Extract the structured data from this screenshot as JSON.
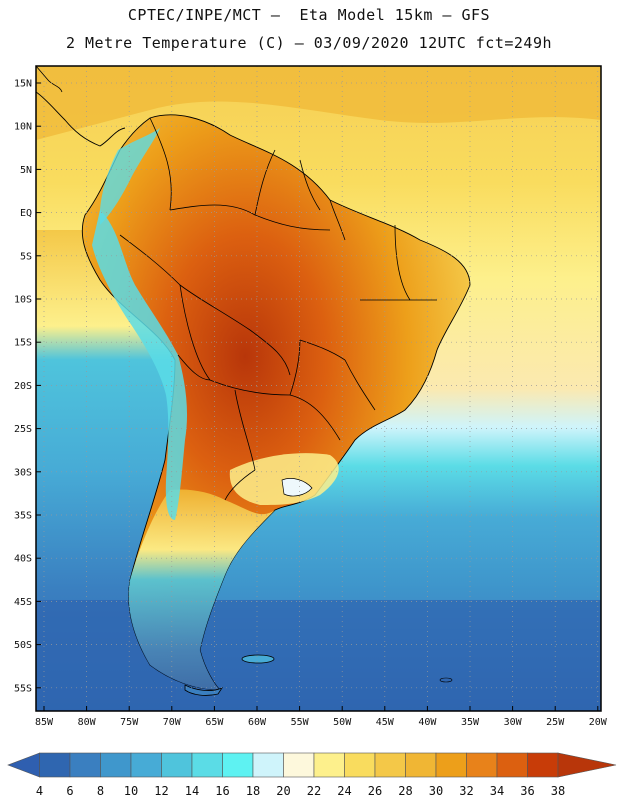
{
  "header": {
    "line1": "CPTEC/INPE/MCT –  Eta Model 15km – GFS",
    "line2": "2 Metre Temperature (C) – 03/09/2020 12UTC fct=249h"
  },
  "map": {
    "lat_labels": [
      "15N",
      "10N",
      "5N",
      "EQ",
      "5S",
      "10S",
      "15S",
      "20S",
      "25S",
      "30S",
      "35S",
      "40S",
      "45S",
      "50S",
      "55S"
    ],
    "lon_labels": [
      "85W",
      "80W",
      "75W",
      "70W",
      "65W",
      "60W",
      "55W",
      "50W",
      "45W",
      "40W",
      "35W",
      "30W",
      "25W",
      "20W"
    ]
  },
  "colorbar": {
    "labels": [
      "4",
      "6",
      "8",
      "10",
      "12",
      "14",
      "16",
      "18",
      "20",
      "22",
      "24",
      "26",
      "28",
      "30",
      "32",
      "34",
      "36",
      "38"
    ],
    "colors": [
      "#2f66b0",
      "#3a7fc0",
      "#3f97cc",
      "#47abd6",
      "#4fc4dc",
      "#5bdce6",
      "#5ef2f2",
      "#cff4fb",
      "#fdf8dc",
      "#fdf08c",
      "#f9dc5e",
      "#f4c848",
      "#f0b634",
      "#ed9f1a",
      "#e8821a",
      "#dc6010",
      "#c83c08"
    ],
    "left_arrow_color": "#2f5fb0",
    "right_arrow_color": "#b8360a"
  },
  "colors": {
    "ocean_cold": "#2f66b0",
    "ocean_mid": "#47abd6",
    "ocean_warm": "#fdf08c",
    "land_hot": "#c8500c",
    "land_warm": "#f0a528",
    "andes": "#4fc4dc"
  }
}
